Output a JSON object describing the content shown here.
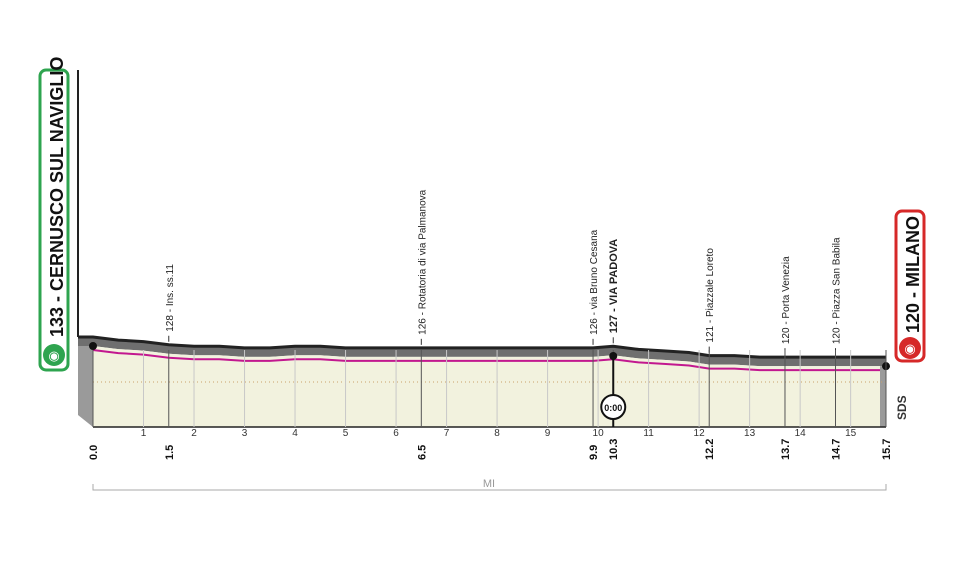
{
  "start": {
    "label": "133 - CERNUSCO SUL NAVIGLIO",
    "accent": "#2ea44f",
    "icon": "cyclist-icon"
  },
  "finish": {
    "label": "120 - MILANO",
    "accent": "#d62828",
    "icon": "cyclist-icon"
  },
  "intermediate_time": {
    "label": "0:00",
    "km": 10.3
  },
  "brand": "SDS",
  "unit": "MI",
  "colors": {
    "profile_fill": "#f2f2de",
    "profile_top": "#222222",
    "route_line": "#c2188f",
    "ground_gray": "#9a9a9a",
    "grid": "#c8c8c8",
    "dotted": "#c9a36a"
  },
  "chart_data": {
    "type": "area",
    "x_ticks": [
      1,
      2,
      3,
      4,
      5,
      6,
      7,
      8,
      9,
      10,
      11,
      12,
      13,
      14,
      15
    ],
    "x_ticks_text": [
      "1",
      "2",
      "3",
      "4",
      "5",
      "6",
      "7",
      "8",
      "9",
      "10",
      "11",
      "12",
      "13",
      "14",
      "15"
    ],
    "key_points": [
      {
        "km": 0.0,
        "label": "0.0"
      },
      {
        "km": 1.5,
        "label": "1.5"
      },
      {
        "km": 6.5,
        "label": "6.5"
      },
      {
        "km": 9.9,
        "label": "9.9"
      },
      {
        "km": 10.3,
        "label": "10.3"
      },
      {
        "km": 12.2,
        "label": "12.2"
      },
      {
        "km": 13.7,
        "label": "13.7"
      },
      {
        "km": 14.7,
        "label": "14.7"
      },
      {
        "km": 15.7,
        "label": "15.7"
      }
    ],
    "waypoints": [
      {
        "km": 1.5,
        "label": "128 - Ins. ss.11",
        "bold": false
      },
      {
        "km": 6.5,
        "label": "126 - Rotatoria di via Palmanova",
        "bold": false
      },
      {
        "km": 9.9,
        "label": "126 - via Bruno Cesana",
        "bold": false
      },
      {
        "km": 10.3,
        "label": "127 - VIA PADOVA",
        "bold": true
      },
      {
        "km": 12.2,
        "label": "121 - Piazzale Loreto",
        "bold": false
      },
      {
        "km": 13.7,
        "label": "120 - Porta Venezia",
        "bold": false
      },
      {
        "km": 14.7,
        "label": "120 - Piazza San Babila",
        "bold": false
      }
    ],
    "profile": [
      [
        0.0,
        133
      ],
      [
        0.5,
        131
      ],
      [
        1.0,
        130
      ],
      [
        1.5,
        128
      ],
      [
        2.0,
        127
      ],
      [
        2.5,
        127
      ],
      [
        3.0,
        126
      ],
      [
        3.5,
        126
      ],
      [
        4.0,
        127
      ],
      [
        4.5,
        127
      ],
      [
        5.0,
        126
      ],
      [
        5.5,
        126
      ],
      [
        6.0,
        126
      ],
      [
        6.5,
        126
      ],
      [
        7.0,
        126
      ],
      [
        7.5,
        126
      ],
      [
        8.0,
        126
      ],
      [
        8.5,
        126
      ],
      [
        9.0,
        126
      ],
      [
        9.5,
        126
      ],
      [
        9.9,
        126
      ],
      [
        10.3,
        127
      ],
      [
        10.8,
        125
      ],
      [
        11.3,
        124
      ],
      [
        11.8,
        123
      ],
      [
        12.2,
        121
      ],
      [
        12.7,
        121
      ],
      [
        13.2,
        120
      ],
      [
        13.7,
        120
      ],
      [
        14.2,
        120
      ],
      [
        14.7,
        120
      ],
      [
        15.2,
        120
      ],
      [
        15.7,
        120
      ]
    ]
  }
}
